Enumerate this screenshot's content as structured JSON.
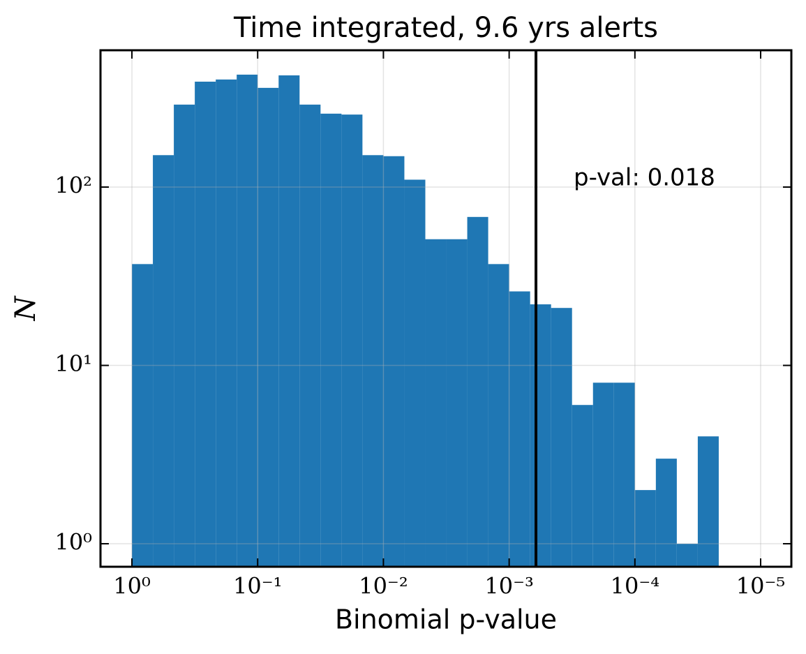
{
  "chart_data": {
    "type": "histogram",
    "title": "Time integrated, 9.6 yrs alerts",
    "x_label": "Binomial p-value",
    "y_label": "N",
    "color": "#1f77b4",
    "bins": [
      1,
      0.6813,
      0.4642,
      0.3162,
      0.2154,
      0.1468,
      0.1,
      0.06813,
      0.04642,
      0.03162,
      0.02154,
      0.01468,
      0.01,
      0.006813,
      0.004642,
      0.003162,
      0.002154,
      0.001468,
      0.001,
      0.0006813,
      0.0004642,
      0.0003162,
      0.0002154,
      0.0001468,
      0.0001,
      6.813e-05,
      4.642e-05,
      3.162e-05,
      2.154e-05
    ],
    "values": [
      37,
      151,
      290,
      390,
      401,
      427,
      360,
      423,
      290,
      258,
      255,
      151,
      149,
      110,
      51,
      51,
      68,
      37,
      26,
      22,
      21,
      6,
      8,
      8,
      2,
      3,
      1,
      4
    ],
    "xlim": [
      1.778,
      5.7e-06
    ],
    "ylim": [
      0.743,
      585
    ],
    "xscale": "log",
    "yscale": "log",
    "grid": true,
    "xticks": [
      {
        "value": 1,
        "label": "10⁰"
      },
      {
        "value": 0.1,
        "label": "10⁻¹"
      },
      {
        "value": 0.01,
        "label": "10⁻²"
      },
      {
        "value": 0.001,
        "label": "10⁻³"
      },
      {
        "value": 0.0001,
        "label": "10⁻⁴"
      },
      {
        "value": 1e-05,
        "label": "10⁻⁵"
      }
    ],
    "yticks": [
      {
        "value": 1,
        "label": "10⁰"
      },
      {
        "value": 10,
        "label": "10¹"
      },
      {
        "value": 100,
        "label": "10²"
      }
    ],
    "vline": {
      "value": 0.000612,
      "color": "#000000"
    },
    "annotation": "p-val: 0.018"
  }
}
